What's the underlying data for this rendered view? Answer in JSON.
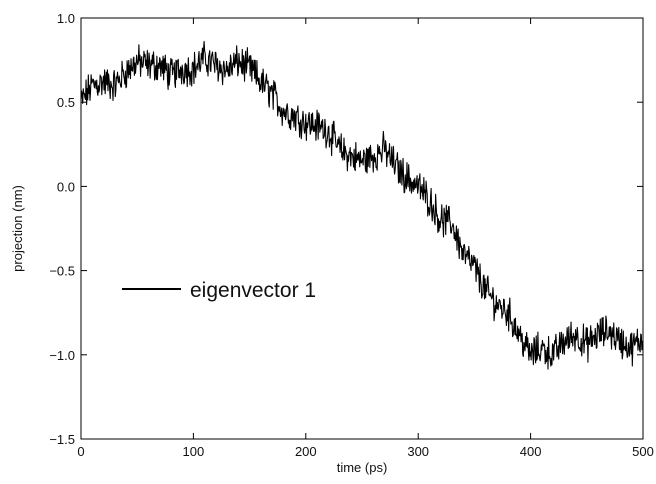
{
  "chart_data": {
    "type": "line",
    "title": "",
    "xlabel": "time (ps)",
    "ylabel": "projection (nm)",
    "xlim": [
      0,
      500
    ],
    "ylim": [
      -1.5,
      1.0
    ],
    "x_ticks": [
      0,
      100,
      200,
      300,
      400,
      500
    ],
    "y_ticks": [
      -1.5,
      -1.0,
      -0.5,
      0.0,
      0.5,
      1.0
    ],
    "x_tick_labels": [
      "0",
      "100",
      "200",
      "300",
      "400",
      "500"
    ],
    "y_tick_labels": [
      "−1.5",
      "−1.0",
      "−0.5",
      "0.0",
      "0.5",
      "1.0"
    ],
    "grid": false,
    "legend_position": "center-left",
    "series": [
      {
        "name": "eigenvector 1",
        "color": "#000000",
        "x": [
          0,
          10,
          20,
          30,
          40,
          50,
          60,
          70,
          80,
          90,
          100,
          110,
          120,
          130,
          140,
          150,
          160,
          170,
          180,
          190,
          200,
          210,
          220,
          230,
          240,
          250,
          260,
          270,
          280,
          290,
          300,
          310,
          320,
          330,
          340,
          350,
          360,
          370,
          380,
          390,
          400,
          410,
          420,
          430,
          440,
          450,
          460,
          470,
          480,
          490,
          500
        ],
        "y": [
          0.5,
          0.6,
          0.62,
          0.6,
          0.68,
          0.74,
          0.72,
          0.72,
          0.66,
          0.7,
          0.7,
          0.76,
          0.72,
          0.69,
          0.74,
          0.7,
          0.62,
          0.55,
          0.45,
          0.42,
          0.38,
          0.36,
          0.33,
          0.22,
          0.18,
          0.15,
          0.18,
          0.22,
          0.12,
          0.05,
          0.0,
          -0.08,
          -0.2,
          -0.22,
          -0.4,
          -0.48,
          -0.62,
          -0.7,
          -0.75,
          -0.88,
          -1.0,
          -0.96,
          -1.0,
          -0.92,
          -0.88,
          -0.94,
          -0.88,
          -0.86,
          -0.92,
          -0.96,
          -0.9
        ]
      }
    ]
  }
}
